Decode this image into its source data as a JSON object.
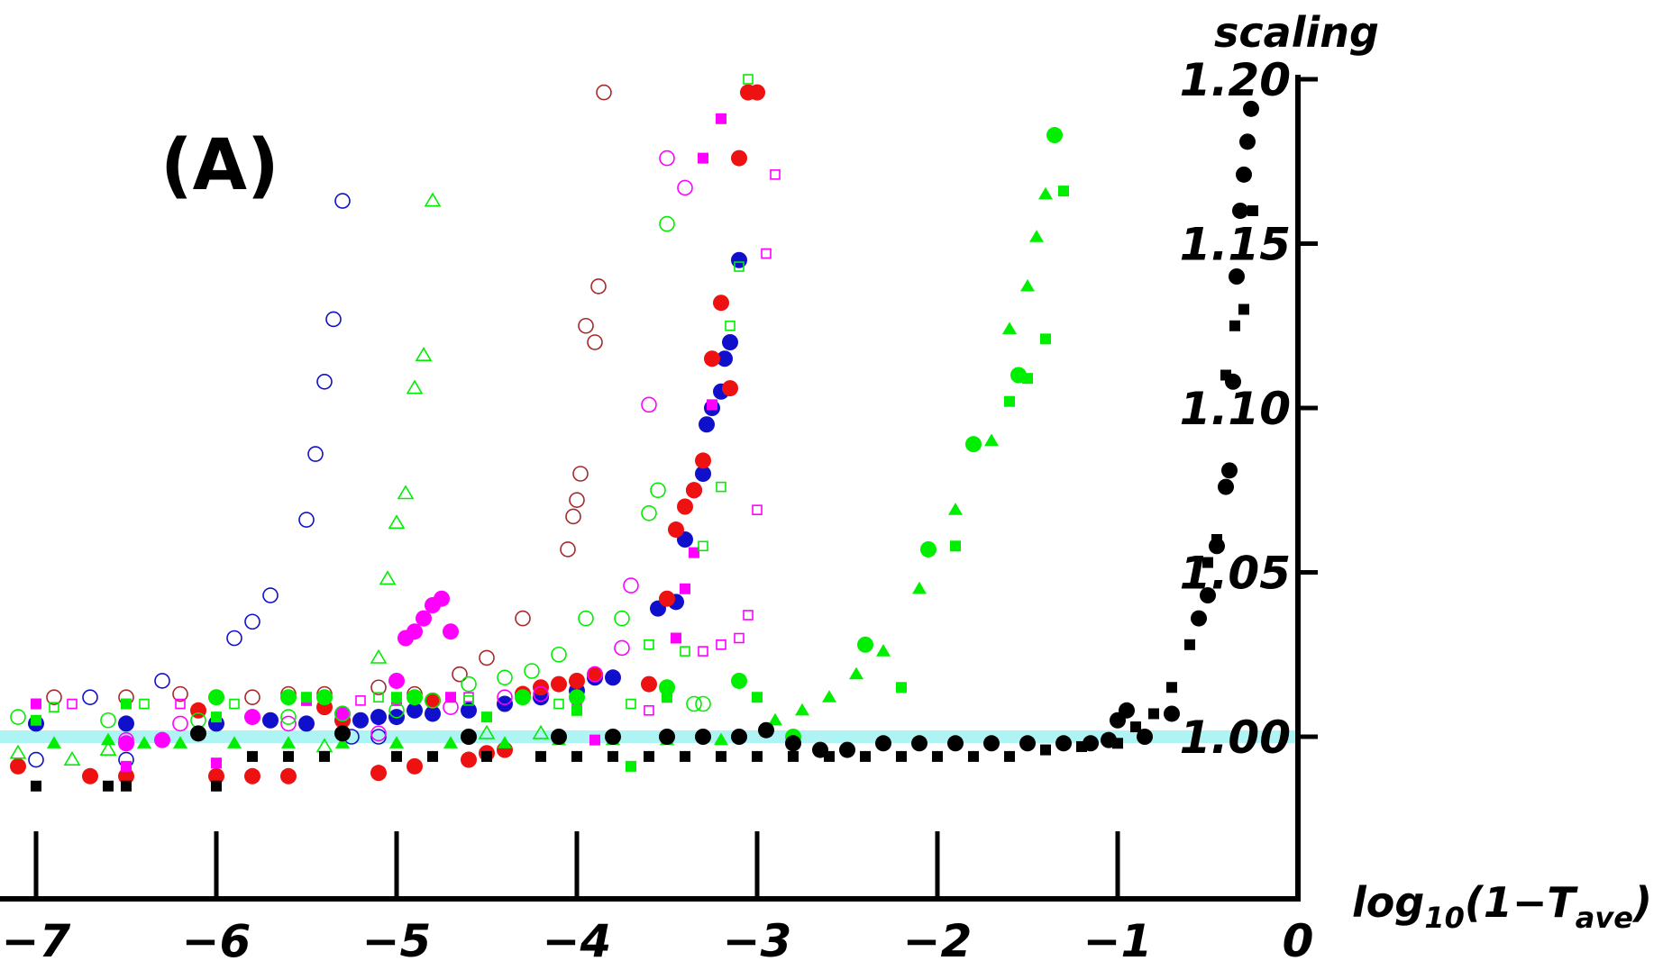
{
  "chart_data": {
    "type": "scatter",
    "panel_label": "(A)",
    "ylabel": "scaling",
    "xlabel_parts": {
      "base": "log",
      "sub1": "10",
      "mid": "(1−T",
      "sub2": "ave",
      "end": ")"
    },
    "xlim": [
      -7.2,
      0
    ],
    "ylim": [
      0.95,
      1.2
    ],
    "x_ticks": [
      -7,
      -6,
      -5,
      -4,
      -3,
      -2,
      -1,
      0
    ],
    "x_tick_labels": [
      "−7",
      "−6",
      "−5",
      "−4",
      "−3",
      "−2",
      "−1",
      "0"
    ],
    "y_ticks": [
      1.0,
      1.05,
      1.1,
      1.15,
      1.2
    ],
    "y_tick_labels": [
      "1.00",
      "1.05",
      "1.10",
      "1.15",
      "1.20"
    ],
    "reference_line": {
      "y": 1.0,
      "color": "#aef4f4"
    },
    "legend": "none",
    "grid": false,
    "series": [
      {
        "color": "#1010cc",
        "marker": "circle-open",
        "x": [
          -7.0,
          -6.7,
          -6.5,
          -6.3,
          -5.9,
          -5.8,
          -5.7,
          -5.5,
          -5.45,
          -5.4,
          -5.35,
          -5.3,
          -5.25,
          -5.1
        ],
        "y": [
          0.993,
          1.012,
          0.993,
          1.017,
          1.03,
          1.035,
          1.043,
          1.066,
          1.086,
          1.108,
          1.127,
          1.163,
          1.0,
          1.0
        ]
      },
      {
        "color": "#1010cc",
        "marker": "circle-filled",
        "x": [
          -7.0,
          -6.5,
          -6.0,
          -5.7,
          -5.5,
          -5.2,
          -5.1,
          -5.0,
          -4.9,
          -4.8,
          -4.6,
          -4.4,
          -4.2,
          -4.0,
          -3.9,
          -3.8,
          -3.55,
          -3.45,
          -3.4,
          -3.35,
          -3.3,
          -3.28,
          -3.25,
          -3.2,
          -3.18,
          -3.15,
          -3.1
        ],
        "y": [
          1.004,
          1.004,
          1.004,
          1.005,
          1.004,
          1.005,
          1.006,
          1.006,
          1.008,
          1.007,
          1.008,
          1.01,
          1.012,
          1.014,
          1.018,
          1.018,
          1.039,
          1.041,
          1.06,
          1.075,
          1.08,
          1.095,
          1.1,
          1.105,
          1.115,
          1.12,
          1.145
        ]
      },
      {
        "color": "#ee1111",
        "marker": "circle-filled",
        "x": [
          -7.1,
          -6.7,
          -6.5,
          -6.1,
          -6.0,
          -5.8,
          -5.6,
          -5.4,
          -5.3,
          -5.1,
          -4.9,
          -4.8,
          -4.6,
          -4.5,
          -4.4,
          -4.3,
          -4.2,
          -4.1,
          -4.0,
          -3.9,
          -3.6,
          -3.5,
          -3.45,
          -3.4,
          -3.35,
          -3.3,
          -3.25,
          -3.2,
          -3.15,
          -3.1,
          -3.05,
          -3.0
        ],
        "y": [
          0.991,
          0.988,
          0.988,
          1.008,
          0.988,
          0.988,
          0.988,
          1.009,
          1.005,
          0.989,
          0.991,
          1.011,
          0.993,
          0.995,
          0.996,
          1.013,
          1.015,
          1.016,
          1.017,
          1.019,
          1.016,
          1.042,
          1.063,
          1.07,
          1.075,
          1.084,
          1.115,
          1.132,
          1.106,
          1.176,
          1.196,
          1.196
        ]
      },
      {
        "color": "#a52a2a",
        "marker": "circle-open",
        "x": [
          -6.9,
          -6.5,
          -6.2,
          -6.0,
          -5.8,
          -5.6,
          -5.4,
          -5.1,
          -4.9,
          -4.65,
          -4.5,
          -4.3,
          -4.05,
          -4.02,
          -4.0,
          -3.98,
          -3.95,
          -3.9,
          -3.88,
          -3.85
        ],
        "y": [
          1.012,
          1.012,
          1.013,
          1.012,
          1.012,
          1.013,
          1.013,
          1.015,
          1.013,
          1.019,
          1.024,
          1.036,
          1.057,
          1.067,
          1.072,
          1.08,
          1.125,
          1.12,
          1.137,
          1.196
        ]
      },
      {
        "color": "#ff00ff",
        "marker": "circle-filled",
        "x": [
          -6.5,
          -6.3,
          -5.8,
          -5.3,
          -5.0,
          -4.95,
          -4.9,
          -4.85,
          -4.8,
          -4.75,
          -4.7
        ],
        "y": [
          0.998,
          0.999,
          1.006,
          1.007,
          1.017,
          1.03,
          1.032,
          1.036,
          1.04,
          1.042,
          1.032
        ]
      },
      {
        "color": "#ff00ff",
        "marker": "circle-open",
        "x": [
          -6.5,
          -6.2,
          -5.6,
          -5.3,
          -5.1,
          -4.7,
          -4.4,
          -4.2,
          -3.9,
          -3.75,
          -3.7,
          -3.6,
          -3.5,
          -3.4
        ],
        "y": [
          0.999,
          1.004,
          1.004,
          1.001,
          1.001,
          1.009,
          1.012,
          1.013,
          1.019,
          1.027,
          1.046,
          1.101,
          1.176,
          1.167
        ]
      },
      {
        "color": "#ff00ff",
        "marker": "square-filled",
        "x": [
          -7.0,
          -6.5,
          -6.0,
          -5.5,
          -5.0,
          -4.7,
          -3.9,
          -3.5,
          -3.45,
          -3.4,
          -3.35,
          -3.3,
          -3.25,
          -3.2
        ],
        "y": [
          1.01,
          0.991,
          0.992,
          1.011,
          1.011,
          1.012,
          0.999,
          1.012,
          1.03,
          1.045,
          1.056,
          1.176,
          1.101,
          1.188
        ]
      },
      {
        "color": "#ff00ff",
        "marker": "square-open",
        "x": [
          -6.8,
          -6.2,
          -5.2,
          -4.6,
          -4.0,
          -3.6,
          -3.3,
          -3.2,
          -3.1,
          -3.05,
          -3.0,
          -2.95,
          -2.9
        ],
        "y": [
          1.01,
          1.01,
          1.011,
          1.012,
          1.011,
          1.008,
          1.026,
          1.028,
          1.03,
          1.037,
          1.069,
          1.147,
          1.171
        ]
      },
      {
        "color": "#00ee00",
        "marker": "circle-filled",
        "x": [
          -6.0,
          -5.6,
          -5.4,
          -4.9,
          -4.3,
          -4.0,
          -3.5,
          -3.1,
          -2.8,
          -2.4,
          -2.05,
          -1.8,
          -1.55,
          -1.35
        ],
        "y": [
          1.012,
          1.012,
          1.012,
          1.012,
          1.012,
          1.012,
          1.015,
          1.017,
          1.0,
          1.028,
          1.057,
          1.089,
          1.11,
          1.183
        ]
      },
      {
        "color": "#00ee00",
        "marker": "circle-open",
        "x": [
          -7.1,
          -6.6,
          -6.1,
          -5.6,
          -5.3,
          -5.0,
          -4.8,
          -4.6,
          -4.4,
          -4.25,
          -4.1,
          -3.95,
          -3.75,
          -3.6,
          -3.55,
          -3.5,
          -3.35,
          -3.3
        ],
        "y": [
          1.006,
          1.005,
          1.005,
          1.006,
          1.007,
          1.008,
          1.011,
          1.016,
          1.018,
          1.02,
          1.025,
          1.036,
          1.036,
          1.068,
          1.075,
          1.156,
          1.01,
          1.01
        ]
      },
      {
        "color": "#00ee00",
        "marker": "triangle-filled",
        "x": [
          -6.9,
          -6.6,
          -6.4,
          -6.2,
          -5.9,
          -5.6,
          -5.3,
          -5.0,
          -4.7,
          -4.4,
          -4.1,
          -3.8,
          -3.5,
          -3.2,
          -2.9,
          -2.75,
          -2.6,
          -2.45,
          -2.3,
          -2.1,
          -1.9,
          -1.7,
          -1.6,
          -1.5,
          -1.45,
          -1.4
        ],
        "y": [
          0.998,
          0.999,
          0.998,
          0.998,
          0.998,
          0.998,
          0.998,
          0.998,
          0.998,
          0.998,
          0.999,
          0.999,
          0.999,
          0.999,
          1.005,
          1.008,
          1.012,
          1.019,
          1.026,
          1.045,
          1.069,
          1.09,
          1.124,
          1.137,
          1.152,
          1.165
        ]
      },
      {
        "color": "#00ee00",
        "marker": "triangle-open",
        "x": [
          -7.1,
          -6.8,
          -6.6,
          -5.4,
          -5.1,
          -5.05,
          -5.0,
          -4.95,
          -4.9,
          -4.85,
          -4.8,
          -4.5,
          -4.2
        ],
        "y": [
          0.995,
          0.993,
          0.996,
          0.997,
          1.024,
          1.048,
          1.065,
          1.074,
          1.106,
          1.116,
          1.163,
          1.001,
          1.001
        ]
      },
      {
        "color": "#00ee00",
        "marker": "square-filled",
        "x": [
          -7.0,
          -6.5,
          -6.0,
          -5.5,
          -5.0,
          -4.5,
          -4.0,
          -3.7,
          -3.5,
          -3.0,
          -2.2,
          -1.9,
          -1.6,
          -1.5,
          -1.4,
          -1.3
        ],
        "y": [
          1.005,
          1.01,
          1.006,
          1.012,
          1.012,
          1.006,
          1.008,
          0.991,
          1.012,
          1.012,
          1.015,
          1.058,
          1.102,
          1.109,
          1.121,
          1.166
        ]
      },
      {
        "color": "#00ee00",
        "marker": "square-open",
        "x": [
          -6.9,
          -6.4,
          -5.9,
          -5.1,
          -4.6,
          -4.1,
          -3.7,
          -3.6,
          -3.4,
          -3.3,
          -3.2,
          -3.15,
          -3.1,
          -3.05
        ],
        "y": [
          1.009,
          1.01,
          1.01,
          1.012,
          1.011,
          1.01,
          1.01,
          1.028,
          1.026,
          1.058,
          1.076,
          1.125,
          1.143,
          1.2
        ]
      },
      {
        "color": "#000000",
        "marker": "circle-filled",
        "x": [
          -6.1,
          -5.3,
          -4.6,
          -4.1,
          -3.8,
          -3.5,
          -3.3,
          -3.1,
          -2.95,
          -2.8,
          -2.65,
          -2.5,
          -2.3,
          -2.1,
          -1.9,
          -1.7,
          -1.5,
          -1.3,
          -1.15,
          -1.05,
          -1.0,
          -0.95,
          -0.85,
          -0.7,
          -0.55,
          -0.5,
          -0.45,
          -0.4,
          -0.38,
          -0.36,
          -0.34,
          -0.32,
          -0.3,
          -0.28,
          -0.26
        ],
        "y": [
          1.001,
          1.001,
          1.0,
          1.0,
          1.0,
          1.0,
          1.0,
          1.0,
          1.002,
          0.998,
          0.996,
          0.996,
          0.998,
          0.998,
          0.998,
          0.998,
          0.998,
          0.998,
          0.998,
          0.999,
          1.005,
          1.008,
          1.0,
          1.007,
          1.036,
          1.043,
          1.058,
          1.076,
          1.081,
          1.108,
          1.14,
          1.16,
          1.171,
          1.181,
          1.191
        ]
      },
      {
        "color": "#000000",
        "marker": "square-filled",
        "x": [
          -7.0,
          -6.6,
          -6.5,
          -6.0,
          -5.8,
          -5.6,
          -5.4,
          -5.0,
          -4.8,
          -4.5,
          -4.2,
          -4.0,
          -3.8,
          -3.6,
          -3.4,
          -3.2,
          -3.0,
          -2.8,
          -2.6,
          -2.4,
          -2.2,
          -2.0,
          -1.8,
          -1.6,
          -1.4,
          -1.2,
          -1.0,
          -0.9,
          -0.8,
          -0.7,
          -0.6,
          -0.5,
          -0.45,
          -0.4,
          -0.35,
          -0.3,
          -0.25
        ],
        "y": [
          0.985,
          0.985,
          0.985,
          0.985,
          0.994,
          0.994,
          0.994,
          0.994,
          0.994,
          0.994,
          0.994,
          0.994,
          0.994,
          0.994,
          0.994,
          0.994,
          0.994,
          0.994,
          0.994,
          0.994,
          0.994,
          0.994,
          0.994,
          0.994,
          0.996,
          0.997,
          0.998,
          1.003,
          1.007,
          1.015,
          1.028,
          1.053,
          1.06,
          1.11,
          1.125,
          1.13,
          1.16
        ]
      }
    ]
  }
}
